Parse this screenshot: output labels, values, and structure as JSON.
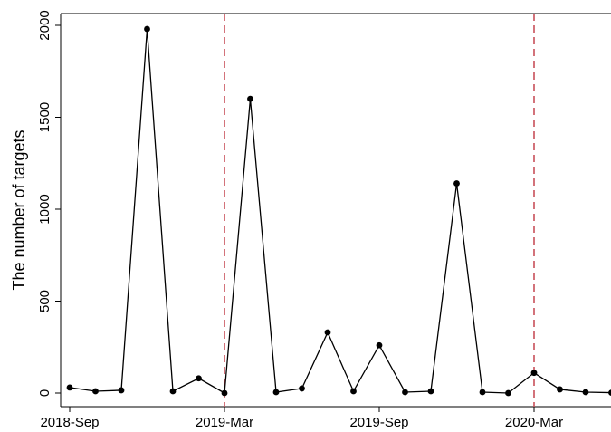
{
  "chart_data": {
    "type": "line",
    "ylabel": "The number of targets",
    "xlabel": "",
    "ylim": [
      0,
      2000
    ],
    "xlim": [
      "2018-Sep",
      "2020-May"
    ],
    "yticks": [
      0,
      500,
      1000,
      1500,
      2000
    ],
    "xticks": [
      {
        "label": "2018-Sep",
        "x": "2018-Sep"
      },
      {
        "label": "2019-Mar",
        "x": "2019-Mar"
      },
      {
        "label": "2019-Sep",
        "x": "2019-Sep"
      },
      {
        "label": "2020-Mar",
        "x": "2020-Mar"
      }
    ],
    "reference_lines": {
      "x": [
        "2019-Mar",
        "2020-Mar"
      ],
      "color": "#c8505a",
      "style": "dashed"
    },
    "series": [
      {
        "color": "#000000",
        "marker": "circle",
        "points": [
          {
            "x": "2018-Sep",
            "y": 30
          },
          {
            "x": "2018-Oct",
            "y": 10
          },
          {
            "x": "2018-Nov",
            "y": 15
          },
          {
            "x": "2018-Dec",
            "y": 1980
          },
          {
            "x": "2019-Jan",
            "y": 10
          },
          {
            "x": "2019-Feb",
            "y": 80
          },
          {
            "x": "2019-Mar",
            "y": 0
          },
          {
            "x": "2019-Apr",
            "y": 1600
          },
          {
            "x": "2019-May",
            "y": 5
          },
          {
            "x": "2019-Jun",
            "y": 25
          },
          {
            "x": "2019-Jul",
            "y": 330
          },
          {
            "x": "2019-Aug",
            "y": 10
          },
          {
            "x": "2019-Sep",
            "y": 260
          },
          {
            "x": "2019-Oct",
            "y": 5
          },
          {
            "x": "2019-Nov",
            "y": 10
          },
          {
            "x": "2019-Dec",
            "y": 1140
          },
          {
            "x": "2020-Jan",
            "y": 5
          },
          {
            "x": "2020-Feb",
            "y": 0
          },
          {
            "x": "2020-Mar",
            "y": 110
          },
          {
            "x": "2020-Apr",
            "y": 20
          },
          {
            "x": "2020-May",
            "y": 5
          },
          {
            "x": "2020-Jun",
            "y": 2
          }
        ]
      }
    ]
  }
}
